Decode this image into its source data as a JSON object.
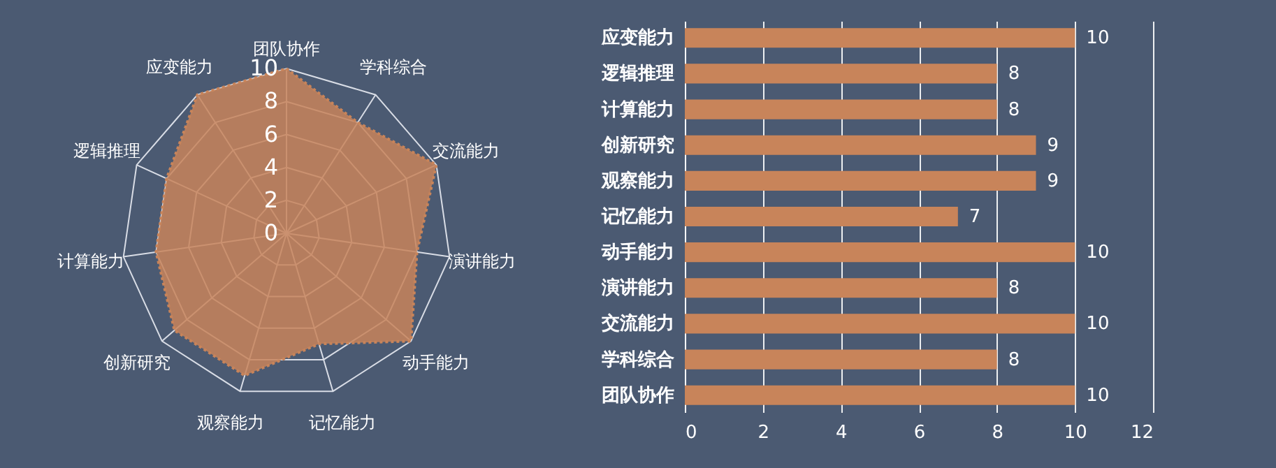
{
  "chart_data": [
    {
      "type": "radar",
      "categories": [
        "团队协作",
        "学科综合",
        "交流能力",
        "演讲能力",
        "动手能力",
        "记忆能力",
        "观察能力",
        "创新研究",
        "计算能力",
        "逻辑推理",
        "应变能力"
      ],
      "series": [
        {
          "color": "#c8845a",
          "values": [
            10,
            8,
            10,
            8,
            10,
            7,
            9,
            9,
            8,
            8,
            10
          ]
        }
      ],
      "ylim": [
        0,
        10
      ],
      "yticks": [
        0,
        2,
        4,
        6,
        8,
        10
      ],
      "marker": "none",
      "line_style": "dotted"
    },
    {
      "type": "bar",
      "orientation": "horizontal",
      "categories": [
        "应变能力",
        "逻辑推理",
        "计算能力",
        "创新研究",
        "观察能力",
        "记忆能力",
        "动手能力",
        "演讲能力",
        "交流能力",
        "学科综合",
        "团队协作"
      ],
      "series": [
        {
          "color": "#c8845a",
          "values": [
            10,
            8,
            8,
            9,
            9,
            7,
            10,
            8,
            10,
            8,
            10
          ]
        }
      ],
      "xlim": [
        0,
        12
      ],
      "xticks": [
        0,
        2,
        4,
        6,
        8,
        10,
        12
      ],
      "grid": "x",
      "data_labels": true
    }
  ]
}
